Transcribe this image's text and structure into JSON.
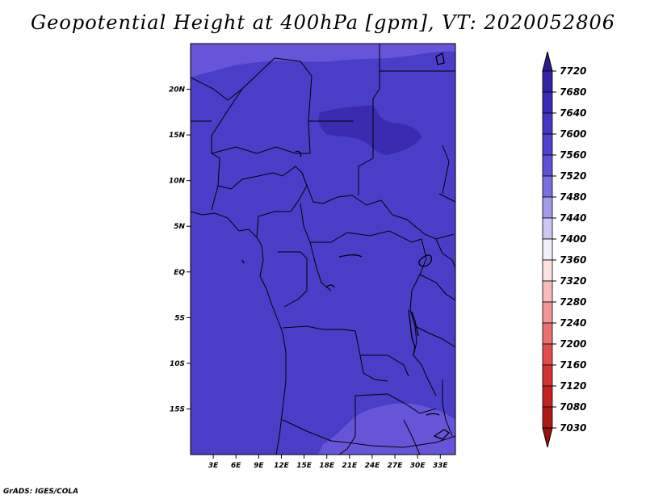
{
  "title": "Geopotential Height at 400hPa [gpm], VT: 2020052806",
  "credit": "GrADS: IGES/COLA",
  "map": {
    "lat_labels": [
      "20N",
      "15N",
      "10N",
      "5N",
      "EQ",
      "5S",
      "10S",
      "15S"
    ],
    "lat_values": [
      20,
      15,
      10,
      5,
      0,
      -5,
      -10,
      -15
    ],
    "lon_labels": [
      "3E",
      "6E",
      "9E",
      "12E",
      "15E",
      "18E",
      "21E",
      "24E",
      "27E",
      "30E",
      "33E"
    ],
    "lon_values": [
      3,
      6,
      9,
      12,
      15,
      18,
      21,
      24,
      27,
      30,
      33
    ],
    "lon_range": [
      0,
      35
    ],
    "lat_range": [
      -20,
      25
    ],
    "base_color": "#4a3dc8",
    "light_color": "#6654d9",
    "dark_color": "#3b2bb0"
  },
  "colorbar": {
    "levels": [
      "7720",
      "7680",
      "7640",
      "7600",
      "7560",
      "7520",
      "7480",
      "7440",
      "7400",
      "7360",
      "7320",
      "7280",
      "7240",
      "7200",
      "7160",
      "7120",
      "7080",
      "7030"
    ],
    "colors": [
      "#2a1a8c",
      "#3322a6",
      "#3b2bb8",
      "#4536c6",
      "#5141d0",
      "#6050d8",
      "#7a6ee0",
      "#a39ae8",
      "#cdc8f2",
      "#f2f0fb",
      "#fde2e2",
      "#f8bcbc",
      "#f29696",
      "#ea7070",
      "#e04c4c",
      "#d43232",
      "#c42222",
      "#b01818",
      "#9a1010"
    ]
  }
}
